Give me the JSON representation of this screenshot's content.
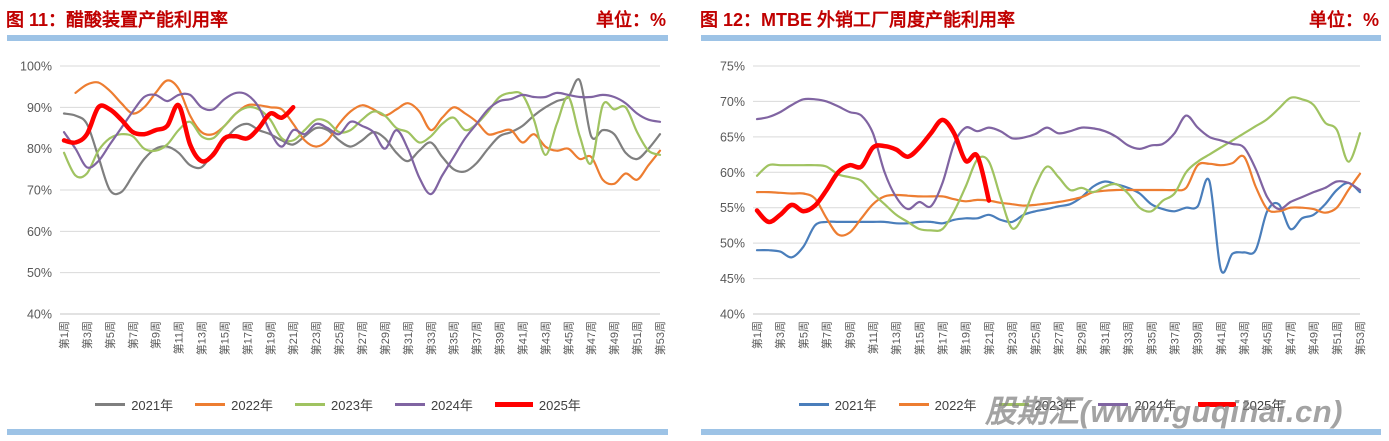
{
  "watermark": {
    "text": "股期汇(www.guqihai.cn)"
  },
  "styles": {
    "title_color": "#C00000",
    "accent_bar_color": "#9DC3E6",
    "grid_color": "#D9D9D9",
    "axis_line_color": "#C6C6C6",
    "axis_text_color": "#595959",
    "legend_text_color": "#404040"
  },
  "chart_data": [
    {
      "type": "line",
      "title": "图 11：醋酸装置产能利用率",
      "unit": "单位：%",
      "ylim": [
        40,
        100
      ],
      "y_tick_values": [
        100,
        90,
        80,
        70,
        60,
        50,
        40
      ],
      "y_tick_labels": [
        "100%",
        "90%",
        "80%",
        "70%",
        "60%",
        "50%",
        "40%"
      ],
      "x_weeks": 53,
      "x_tick_labels": [
        "第1周",
        "第3周",
        "第5周",
        "第7周",
        "第9周",
        "第11周",
        "第13周",
        "第15周",
        "第17周",
        "第19周",
        "第21周",
        "第23周",
        "第25周",
        "第27周",
        "第29周",
        "第31周",
        "第33周",
        "第35周",
        "第37周",
        "第39周",
        "第41周",
        "第43周",
        "第45周",
        "第47周",
        "第49周",
        "第51周",
        "第53周"
      ],
      "grid": "horizontal",
      "legend_position": "bottom",
      "smoothed": true,
      "series": [
        {
          "name": "2021年",
          "color": "#7F7F7F",
          "line_width": 2.2,
          "start_week": 1,
          "values": [
            88.5,
            88,
            86,
            78,
            70,
            69.5,
            73.5,
            77.5,
            80,
            80.5,
            79,
            76,
            75.5,
            79,
            82,
            85,
            86,
            84.5,
            83.5,
            82,
            81,
            83,
            85,
            84.5,
            82,
            80.5,
            82,
            84,
            82.5,
            79,
            77,
            79.5,
            81.5,
            78,
            75,
            74.5,
            76.5,
            80,
            83,
            84,
            85.5,
            88,
            90,
            91.5,
            92.5,
            96.5,
            83,
            84.5,
            83.5,
            79,
            77.5,
            80,
            83.5
          ]
        },
        {
          "name": "2022年",
          "color": "#ED7D31",
          "line_width": 2.2,
          "start_week": 2,
          "values": [
            93.5,
            95.5,
            96,
            94,
            91,
            88.5,
            90,
            93.5,
            96.5,
            94.5,
            88,
            84,
            83.5,
            85.5,
            88.5,
            90.5,
            90.5,
            90,
            89.5,
            86,
            82,
            80.5,
            82,
            86,
            89,
            90.5,
            89.5,
            88,
            89.5,
            91,
            89,
            84.5,
            87.5,
            90,
            88.5,
            86.5,
            83.5,
            84,
            84.5,
            81.5,
            83.5,
            80.5,
            79.5,
            80,
            77.5,
            78,
            72.5,
            71.5,
            74,
            72.5,
            76,
            79.5
          ]
        },
        {
          "name": "2023年",
          "color": "#A0C361",
          "line_width": 2.2,
          "start_week": 1,
          "values": [
            79,
            73.5,
            74,
            79.5,
            82.5,
            83.5,
            83,
            80,
            79.5,
            81,
            84.5,
            86.5,
            83,
            82.5,
            85.5,
            88.5,
            90,
            89.5,
            87,
            82.5,
            82,
            84.5,
            87,
            86.5,
            84,
            84.5,
            87,
            89,
            88,
            85,
            84,
            81.5,
            83,
            86,
            87.5,
            84.5,
            86,
            89,
            92.5,
            93.5,
            93,
            87,
            78.5,
            86,
            92.5,
            83,
            76.5,
            90.5,
            89.5,
            90,
            84,
            79.5,
            78.5
          ]
        },
        {
          "name": "2024年",
          "color": "#8064A2",
          "line_width": 2.2,
          "start_week": 1,
          "values": [
            84,
            80,
            75.5,
            77,
            81,
            85,
            89,
            92.5,
            93,
            91.5,
            93,
            93,
            90,
            89.5,
            92,
            93.5,
            93,
            90,
            84,
            80.5,
            84.5,
            83.5,
            86,
            85,
            83.5,
            86.5,
            85.5,
            84,
            80,
            84.5,
            80,
            73,
            69,
            73.5,
            78,
            82.5,
            86,
            89.5,
            91.5,
            92,
            93,
            92.5,
            92.5,
            93.5,
            93,
            92.5,
            92.5,
            93,
            92.5,
            91,
            88.5,
            87,
            86.5
          ]
        },
        {
          "name": "2025年",
          "color": "#FF0000",
          "line_width": 4.5,
          "start_week": 1,
          "values": [
            82,
            81.5,
            83.5,
            90,
            89.5,
            87,
            84,
            83.5,
            84.5,
            85.5,
            90.5,
            81,
            77,
            78.5,
            82.5,
            83,
            82.5,
            85,
            88.5,
            87.5,
            90
          ]
        }
      ]
    },
    {
      "type": "line",
      "title": "图 12：MTBE 外销工厂周度产能利用率",
      "unit": "单位：%",
      "ylim": [
        40,
        75
      ],
      "y_tick_values": [
        75,
        70,
        65,
        60,
        55,
        50,
        45,
        40
      ],
      "y_tick_labels": [
        "75%",
        "70%",
        "65%",
        "60%",
        "55%",
        "50%",
        "45%",
        "40%"
      ],
      "x_weeks": 53,
      "x_tick_labels": [
        "第1周",
        "第3周",
        "第5周",
        "第7周",
        "第9周",
        "第11周",
        "第13周",
        "第15周",
        "第17周",
        "第19周",
        "第21周",
        "第23周",
        "第25周",
        "第27周",
        "第29周",
        "第31周",
        "第33周",
        "第35周",
        "第37周",
        "第39周",
        "第41周",
        "第43周",
        "第45周",
        "第47周",
        "第49周",
        "第51周",
        "第53周"
      ],
      "grid": "horizontal",
      "legend_position": "bottom",
      "smoothed": true,
      "series": [
        {
          "name": "2021年",
          "color": "#4A7EBB",
          "line_width": 2.2,
          "start_week": 1,
          "values": [
            49,
            49,
            48.8,
            48,
            49.5,
            52.5,
            53,
            53,
            53,
            53,
            53,
            53,
            52.8,
            52.8,
            53,
            53,
            52.8,
            53.3,
            53.5,
            53.5,
            54,
            53.3,
            53,
            54,
            54.5,
            54.8,
            55.2,
            55.5,
            56.5,
            58,
            58.7,
            58.3,
            57.8,
            57,
            55.5,
            54.8,
            54.5,
            55,
            55.2,
            58.8,
            46.3,
            48.5,
            48.7,
            49,
            54.5,
            55.5,
            52,
            53.5,
            54,
            55.5,
            57.5,
            58.5,
            57.2
          ]
        },
        {
          "name": "2022年",
          "color": "#ED7D31",
          "line_width": 2.2,
          "start_week": 1,
          "values": [
            57.2,
            57.2,
            57.1,
            57,
            57,
            56.3,
            53.5,
            51.2,
            51.5,
            53.5,
            55.5,
            56.6,
            56.8,
            56.7,
            56.6,
            56.6,
            56.6,
            56.2,
            55.9,
            56.1,
            56,
            55.7,
            55.5,
            55.3,
            55.4,
            55.6,
            55.8,
            56.1,
            56.5,
            57.2,
            57.4,
            57.5,
            57.5,
            57.5,
            57.5,
            57.5,
            57.5,
            57.8,
            61,
            61.2,
            61,
            61.3,
            62.2,
            58,
            54.8,
            54.5,
            55,
            55,
            54.8,
            54.3,
            55,
            57.5,
            59.8
          ]
        },
        {
          "name": "2023年",
          "color": "#A0C361",
          "line_width": 2.2,
          "start_week": 1,
          "values": [
            59.5,
            61,
            61,
            61,
            61,
            61,
            60.8,
            59.7,
            59.3,
            58.8,
            57,
            55.5,
            54,
            53,
            52,
            51.8,
            52,
            54.5,
            58,
            61.8,
            61.5,
            56.5,
            52.1,
            54,
            58,
            60.8,
            59.3,
            57.5,
            57.8,
            57.2,
            58,
            58.3,
            57,
            55,
            54.5,
            56,
            57,
            60,
            61.5,
            62.5,
            63.5,
            64.5,
            65.5,
            66.5,
            67.5,
            69,
            70.5,
            70.3,
            69.5,
            67,
            66,
            61.5,
            65.5
          ]
        },
        {
          "name": "2024年",
          "color": "#8064A2",
          "line_width": 2.2,
          "start_week": 1,
          "values": [
            67.5,
            67.8,
            68.5,
            69.5,
            70.3,
            70.3,
            70,
            69.3,
            68.5,
            68,
            65.5,
            60,
            56.5,
            54.8,
            55.8,
            55.2,
            58.5,
            64,
            66.3,
            65.8,
            66.3,
            65.8,
            64.8,
            64.9,
            65.4,
            66.3,
            65.5,
            65.8,
            66.3,
            66.2,
            65.8,
            65,
            63.8,
            63.3,
            63.8,
            64,
            65.5,
            68,
            66.3,
            65,
            64.5,
            64,
            63.5,
            60.5,
            56.5,
            54.8,
            55.8,
            56.5,
            57.2,
            57.8,
            58.7,
            58.5,
            57.5
          ]
        },
        {
          "name": "2025年",
          "color": "#FF0000",
          "line_width": 4.5,
          "start_week": 1,
          "values": [
            54.6,
            53,
            54,
            55.4,
            54.5,
            55.3,
            57.5,
            60,
            61,
            60.8,
            63.5,
            63.7,
            63.2,
            62.2,
            63.5,
            65.5,
            67.4,
            65.5,
            61.6,
            62.3,
            56
          ]
        }
      ]
    }
  ]
}
